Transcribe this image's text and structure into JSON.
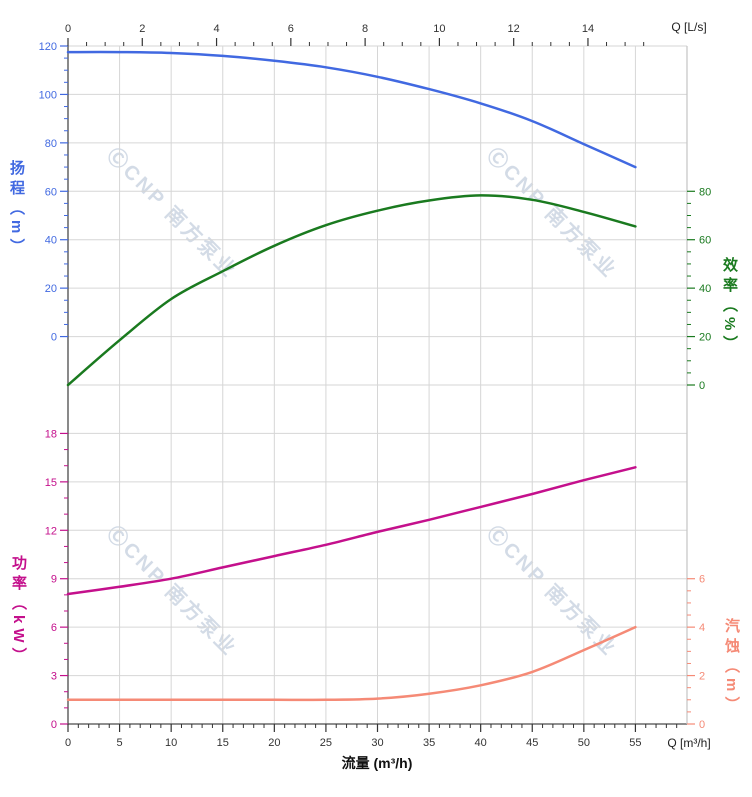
{
  "watermark": {
    "text": "ⒸCNP 南方泵业"
  },
  "chart_data": {
    "type": "line",
    "title": "",
    "x_flow_m3h": [
      0,
      5,
      10,
      15,
      20,
      25,
      30,
      35,
      40,
      45,
      50,
      55
    ],
    "series": [
      {
        "name": "扬程",
        "unit": "m",
        "axis": "head",
        "color": "#4169e1",
        "values": [
          117.5,
          117.5,
          117.1,
          115.9,
          113.9,
          111.2,
          107.3,
          102.2,
          96.3,
          89.0,
          79.5,
          70.0
        ]
      },
      {
        "name": "效率",
        "unit": "%",
        "axis": "eff",
        "color": "#1a7a1f",
        "values": [
          0,
          18.5,
          35.5,
          47.0,
          57.5,
          66.0,
          72.0,
          76.2,
          78.3,
          76.5,
          71.5,
          65.5
        ]
      },
      {
        "name": "功率",
        "unit": "kW",
        "axis": "power",
        "color": "#c4108c",
        "values": [
          8.05,
          8.5,
          9.0,
          9.7,
          10.4,
          11.1,
          11.9,
          12.65,
          13.45,
          14.25,
          15.1,
          15.9
        ]
      },
      {
        "name": "汽蚀",
        "unit": "m",
        "axis": "npsh",
        "color": "#f58a76",
        "values": [
          1.0,
          1.0,
          1.0,
          1.0,
          1.0,
          1.0,
          1.05,
          1.25,
          1.6,
          2.15,
          3.05,
          4.0
        ]
      }
    ],
    "axes": {
      "x_bottom": {
        "label": "流量 (m³/h)",
        "unit_label": "Q [m³/h]",
        "color": "#333333",
        "major_ticks": [
          0,
          5,
          10,
          15,
          20,
          25,
          30,
          35,
          40,
          45,
          50,
          55
        ],
        "minor_step": 1,
        "minor_max": 59,
        "range": [
          0,
          60
        ]
      },
      "x_top": {
        "unit_label": "Q [L/s]",
        "color": "#333333",
        "major_ticks": [
          0,
          2,
          4,
          6,
          8,
          10,
          12,
          14
        ],
        "minor_step": 0.5,
        "minor_max": 15.5,
        "range": [
          0,
          16.67
        ]
      },
      "head": {
        "label": "扬程（m）",
        "color": "#4169e1",
        "major_ticks": [
          120,
          100,
          80,
          60,
          40,
          20,
          0
        ],
        "minor_step": 5,
        "range": [
          0,
          120
        ]
      },
      "eff": {
        "label": "效率（%）",
        "color": "#1a7a1f",
        "major_ticks": [
          80,
          60,
          40,
          20,
          0
        ],
        "minor_step": 5,
        "range": [
          0,
          80
        ]
      },
      "power": {
        "label": "功率（kW）",
        "color": "#c4108c",
        "major_ticks": [
          18,
          15,
          12,
          9,
          6,
          3,
          0
        ],
        "minor_step": 1,
        "range": [
          0,
          18
        ]
      },
      "npsh": {
        "label": "汽蚀（m）",
        "color": "#f58a76",
        "major_ticks": [
          6,
          4,
          2,
          0
        ],
        "minor_step": 0.5,
        "range": [
          0,
          6
        ]
      }
    },
    "grid": {
      "color": "#d6d6d6",
      "spine_dark": "#4a4a4a",
      "spine_light": "#c8c8c8",
      "legend": "none"
    }
  }
}
